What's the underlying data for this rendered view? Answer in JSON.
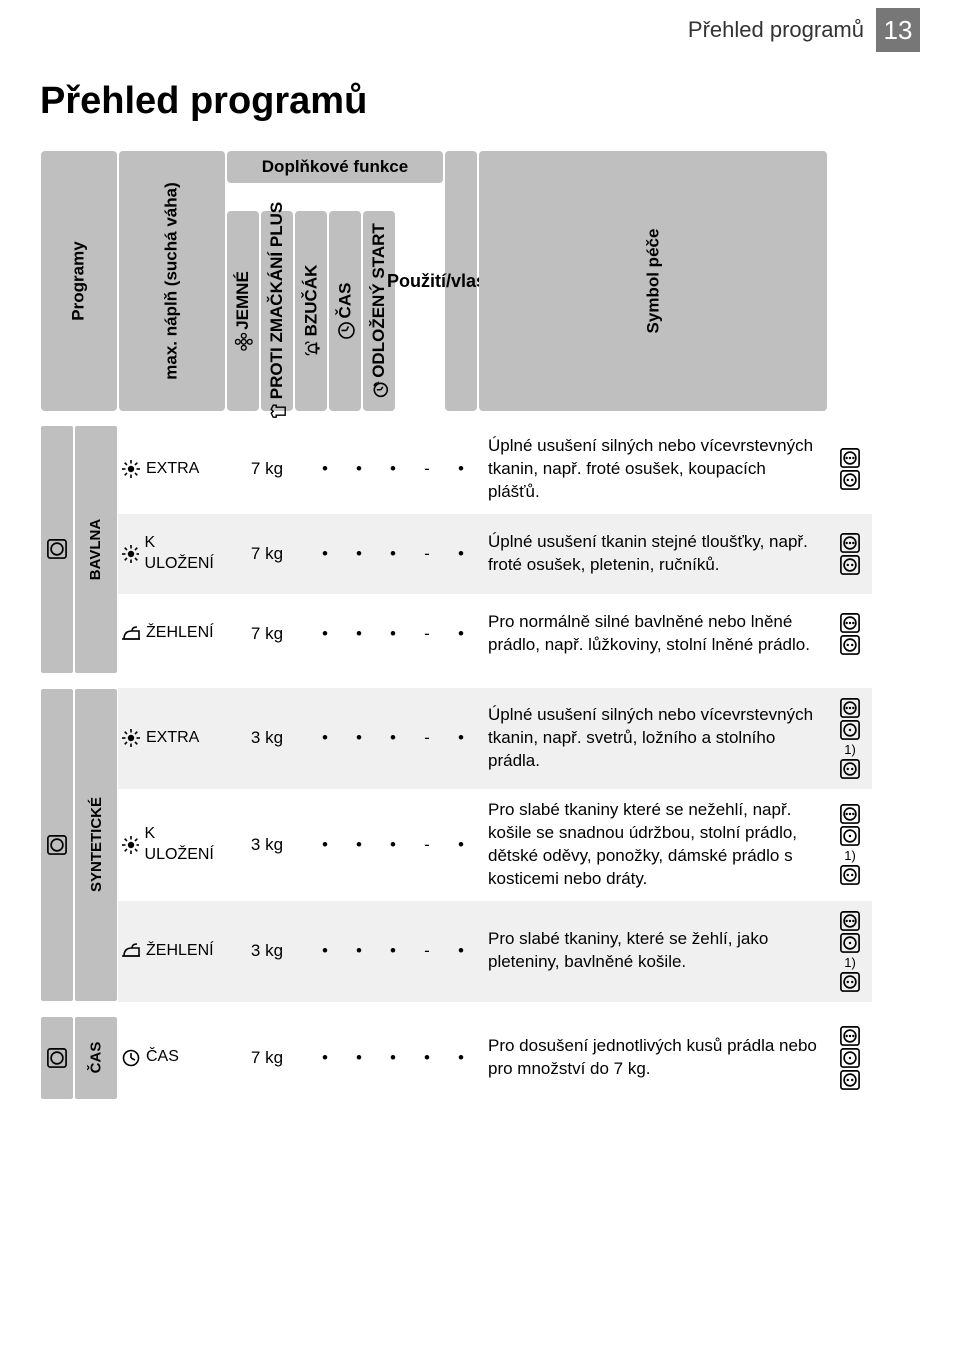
{
  "header": {
    "title": "Přehled programů",
    "page_number": "13"
  },
  "section_title": "Přehled programů",
  "columns": {
    "programs": "Programy",
    "max_load": "max. náplň (suchá váha)",
    "func_group": "Doplňkové funkce",
    "funcs": {
      "gentle": "JEMNÉ",
      "anticrease": "PROTI ZMAČKÁNÍ PLUS",
      "buzzer": "BZUČÁK",
      "time": "ČAS",
      "delay": "ODLOŽENÝ START"
    },
    "usage": "Použití/vlastnosti",
    "care": "Symbol péče"
  },
  "categories": [
    {
      "name": "BAVLNA",
      "rows": [
        {
          "program_icon": "sun",
          "program": "EXTRA",
          "max": "7 kg",
          "cells": [
            "•",
            "•",
            "•",
            "-",
            "•"
          ],
          "desc": "Úplné usušení silných nebo vícevrstevných tkanin, např. froté osušek, koupacích plášťů.",
          "symbols": [
            "dot3",
            "dot2"
          ],
          "footnote": ""
        },
        {
          "program_icon": "sun",
          "program": "K ULOŽENÍ",
          "max": "7 kg",
          "cells": [
            "•",
            "•",
            "•",
            "-",
            "•"
          ],
          "desc": "Úplné usušení tkanin stejné tloušťky, např. froté osušek, pletenin, ručníků.",
          "symbols": [
            "dot3",
            "dot2"
          ],
          "footnote": ""
        },
        {
          "program_icon": "iron",
          "program": "ŽEHLENÍ",
          "max": "7 kg",
          "cells": [
            "•",
            "•",
            "•",
            "-",
            "•"
          ],
          "desc": "Pro normálně silné bavlněné nebo lněné prádlo, např. lůžkoviny, stolní lněné prádlo.",
          "symbols": [
            "dot3",
            "dot2"
          ],
          "footnote": ""
        }
      ]
    },
    {
      "name": "SYNTETICKÉ",
      "rows": [
        {
          "program_icon": "sun",
          "program": "EXTRA",
          "max": "3 kg",
          "cells": [
            "•",
            "•",
            "•",
            "-",
            "•"
          ],
          "desc": "Úplné usušení silných nebo vícevrstevných tkanin, např. svetrů, ložního a stolního prádla.",
          "symbols": [
            "dot3",
            "dot1",
            "dot2"
          ],
          "footnote": "1)"
        },
        {
          "program_icon": "sun",
          "program": "K ULOŽENÍ",
          "max": "3 kg",
          "cells": [
            "•",
            "•",
            "•",
            "-",
            "•"
          ],
          "desc": "Pro slabé tkaniny které se nežehlí, např. košile se snadnou údržbou, stolní prádlo, dětské oděvy, ponožky, dámské prádlo s kosticemi nebo dráty.",
          "symbols": [
            "dot3",
            "dot1",
            "dot2"
          ],
          "footnote": "1)"
        },
        {
          "program_icon": "iron",
          "program": "ŽEHLENÍ",
          "max": "3 kg",
          "cells": [
            "•",
            "•",
            "•",
            "-",
            "•"
          ],
          "desc": "Pro slabé tkaniny, které se žehlí, jako pleteniny, bavlněné košile.",
          "symbols": [
            "dot3",
            "dot1",
            "dot2"
          ],
          "footnote": "1)"
        }
      ]
    },
    {
      "name": "ČAS",
      "rows": [
        {
          "program_icon": "clock",
          "program": "ČAS",
          "max": "7 kg",
          "cells": [
            "•",
            "•",
            "•",
            "•",
            "•"
          ],
          "desc": "Pro dosušení jednotlivých kusů prádla nebo pro množství do 7 kg.",
          "symbols": [
            "dot3",
            "dot1",
            "dot2"
          ],
          "footnote": ""
        }
      ]
    }
  ]
}
